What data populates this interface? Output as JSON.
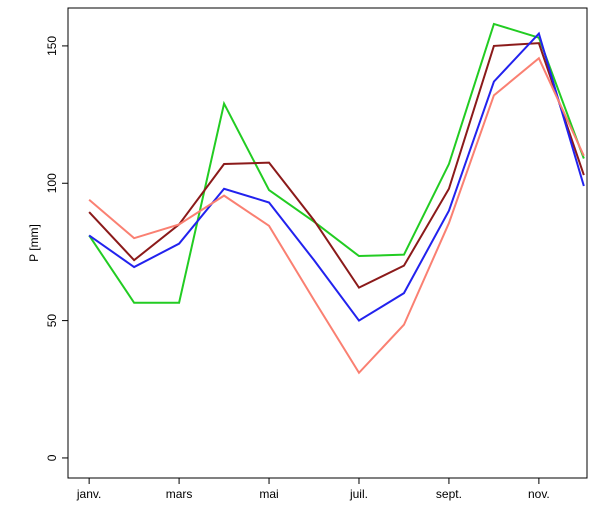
{
  "chart_data": {
    "type": "line",
    "y_label": "P [mm]",
    "categories": [
      "janv.",
      null,
      "mars",
      null,
      "mai",
      null,
      "juil.",
      null,
      "sept.",
      null,
      "nov.",
      null
    ],
    "series": [
      {
        "color": "#22cc22",
        "values": [
          81,
          56.5,
          56.5,
          129,
          97.5,
          86,
          73.5,
          74,
          107,
          158,
          153,
          109
        ]
      },
      {
        "color": "#8b1a1a",
        "values": [
          89.5,
          72,
          85,
          107,
          107.5,
          86.5,
          62,
          70,
          98,
          150,
          151,
          103
        ]
      },
      {
        "color": "#2222ee",
        "values": [
          81,
          69.5,
          78,
          98,
          93,
          72,
          50,
          60,
          90,
          137,
          154.5,
          99
        ]
      },
      {
        "color": "#fa8072",
        "values": [
          94,
          80,
          85,
          95.5,
          84.5,
          57.5,
          31,
          48.5,
          85.5,
          132,
          145.5,
          110
        ]
      }
    ],
    "ylim": [
      -7.3,
      163.8
    ],
    "yticks": [
      0,
      50,
      100,
      150
    ]
  }
}
